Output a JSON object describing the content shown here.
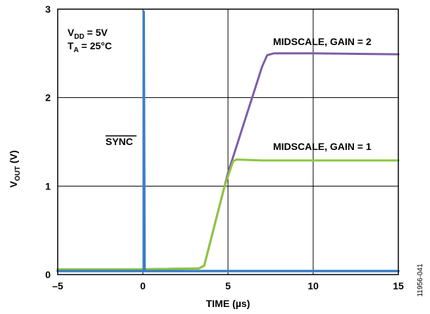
{
  "chart_data": {
    "type": "line",
    "xlabel": "TIME (µs)",
    "ylabel": {
      "main": "V",
      "sub": "OUT",
      "unit": " (V)"
    },
    "xlim": [
      -5,
      15
    ],
    "ylim": [
      0,
      3
    ],
    "xticks": [
      "–5",
      "0",
      "5",
      "10",
      "15"
    ],
    "xtick_values": [
      -5,
      0,
      5,
      10,
      15
    ],
    "yticks": [
      "0",
      "1",
      "2",
      "3"
    ],
    "ytick_values": [
      0,
      1,
      2,
      3
    ],
    "grid": true,
    "conditions": [
      {
        "main": "V",
        "sub": "DD",
        "rest": " = 5V"
      },
      {
        "main": "T",
        "sub": "A",
        "rest": " = 25°C"
      }
    ],
    "series": [
      {
        "name": "SYNC",
        "color": "#3b7dc4",
        "x": [
          -5,
          0.05,
          0.05,
          0.05,
          0.05,
          0.1,
          0.1,
          15
        ],
        "y": [
          0.04,
          0.04,
          0.04,
          2.97,
          2.97,
          0.04,
          0.04,
          0.04
        ]
      },
      {
        "name": "MIDSCALE, GAIN = 1",
        "color": "#8dc63f",
        "x": [
          -5,
          0,
          2,
          3.3,
          3.6,
          3.8,
          4.2,
          4.8,
          5.3,
          5.5,
          7,
          10,
          15
        ],
        "y": [
          0.06,
          0.06,
          0.065,
          0.07,
          0.1,
          0.25,
          0.55,
          1.0,
          1.28,
          1.3,
          1.29,
          1.29,
          1.29
        ]
      },
      {
        "name": "MIDSCALE, GAIN = 2",
        "color": "#7b5ea8",
        "x": [
          -5,
          0,
          2,
          3.3,
          3.6,
          3.8,
          4.2,
          5,
          6,
          7,
          7.3,
          7.7,
          10,
          15
        ],
        "y": [
          0.06,
          0.06,
          0.065,
          0.07,
          0.1,
          0.25,
          0.55,
          1.15,
          1.75,
          2.35,
          2.48,
          2.5,
          2.5,
          2.49
        ]
      }
    ],
    "annotations": {
      "sync_label": "SYNC",
      "gain2_label": "MIDSCALE, GAIN = 2",
      "gain1_label": "MIDSCALE, GAIN = 1"
    },
    "figure_id": "11956-041"
  }
}
